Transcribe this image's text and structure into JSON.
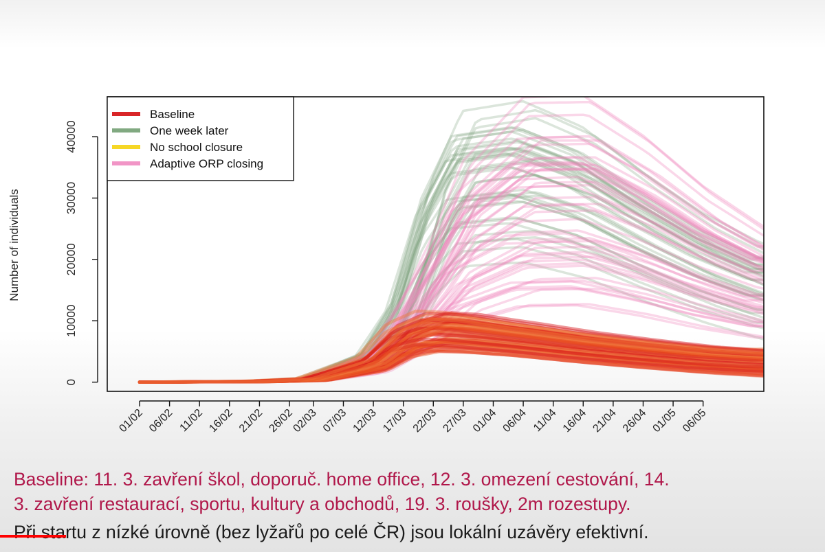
{
  "chart_data": {
    "type": "line",
    "ylabel": "Number of individuals",
    "xlabel": "",
    "title": "",
    "ylim": [
      -1500,
      46500
    ],
    "yticks": [
      0,
      10000,
      20000,
      30000,
      40000
    ],
    "ytick_labels": [
      "0",
      "10000",
      "20000",
      "30000",
      "40000"
    ],
    "x_start": "01/02",
    "x_end": "16/05",
    "xtick_labels": [
      "01/02",
      "06/02",
      "11/02",
      "16/02",
      "21/02",
      "26/02",
      "02/03",
      "07/03",
      "12/03",
      "17/03",
      "22/03",
      "27/03",
      "01/04",
      "06/04",
      "11/04",
      "16/04",
      "21/04",
      "26/04",
      "01/05",
      "06/05"
    ],
    "legend_position": "top-left",
    "legend": [
      {
        "name": "Baseline",
        "color": "#d7191c"
      },
      {
        "name": "One week later",
        "color": "#6b9a6b"
      },
      {
        "name": "No school closure",
        "color": "#f5d000"
      },
      {
        "name": "Adaptive ORP closing",
        "color": "#ee82bc"
      }
    ],
    "series": [
      {
        "name": "Baseline",
        "color": "#e8431f",
        "n_runs": 60,
        "median": {
          "x": [
            "01/02",
            "21/02",
            "02/03",
            "12/03",
            "17/03",
            "22/03",
            "27/03",
            "06/04",
            "16/04",
            "26/04",
            "06/05",
            "16/05"
          ],
          "y": [
            0,
            100,
            400,
            2800,
            6500,
            8000,
            7800,
            6700,
            5500,
            4500,
            3600,
            3000
          ]
        },
        "peak_range": [
          4800,
          11800
        ],
        "end_range": [
          800,
          5500
        ]
      },
      {
        "name": "One week later",
        "color": "#7fa37f",
        "n_runs": 40,
        "median": {
          "x": [
            "01/02",
            "21/02",
            "02/03",
            "12/03",
            "17/03",
            "22/03",
            "27/03",
            "06/04",
            "16/04",
            "26/04",
            "06/05",
            "16/05"
          ],
          "y": [
            0,
            100,
            450,
            3300,
            9000,
            21000,
            28000,
            29000,
            26000,
            21000,
            16500,
            13000
          ]
        },
        "peak_range": [
          19000,
          46500
        ],
        "end_range": [
          6500,
          23000
        ]
      },
      {
        "name": "No school closure",
        "color": "#f5d000",
        "n_runs": 0
      },
      {
        "name": "Adaptive ORP closing",
        "color": "#ee82bc",
        "n_runs": 45,
        "median": {
          "x": [
            "01/02",
            "21/02",
            "02/03",
            "12/03",
            "17/03",
            "22/03",
            "27/03",
            "06/04",
            "16/04",
            "26/04",
            "06/05",
            "16/05"
          ],
          "y": [
            0,
            100,
            450,
            3000,
            8000,
            14000,
            21000,
            27000,
            27000,
            23000,
            18000,
            14000
          ]
        },
        "peak_range": [
          12000,
          46500
        ],
        "end_range": [
          7000,
          25500
        ]
      }
    ]
  },
  "caption": {
    "line1": "Baseline: 11. 3. zavření škol, doporuč. home office, 12. 3. omezení cestování, 14.",
    "line2": "3. zavření restaurací, sportu, kultury a obchodů, 19. 3. roušky, 2m rozestupy.",
    "line3": "Při startu z nízké úrovně (bez lyžařů po celé ČR) jsou lokální uzávěry efektivní."
  },
  "video": {
    "progress": 0.08,
    "progress_color": "#ff0000"
  }
}
